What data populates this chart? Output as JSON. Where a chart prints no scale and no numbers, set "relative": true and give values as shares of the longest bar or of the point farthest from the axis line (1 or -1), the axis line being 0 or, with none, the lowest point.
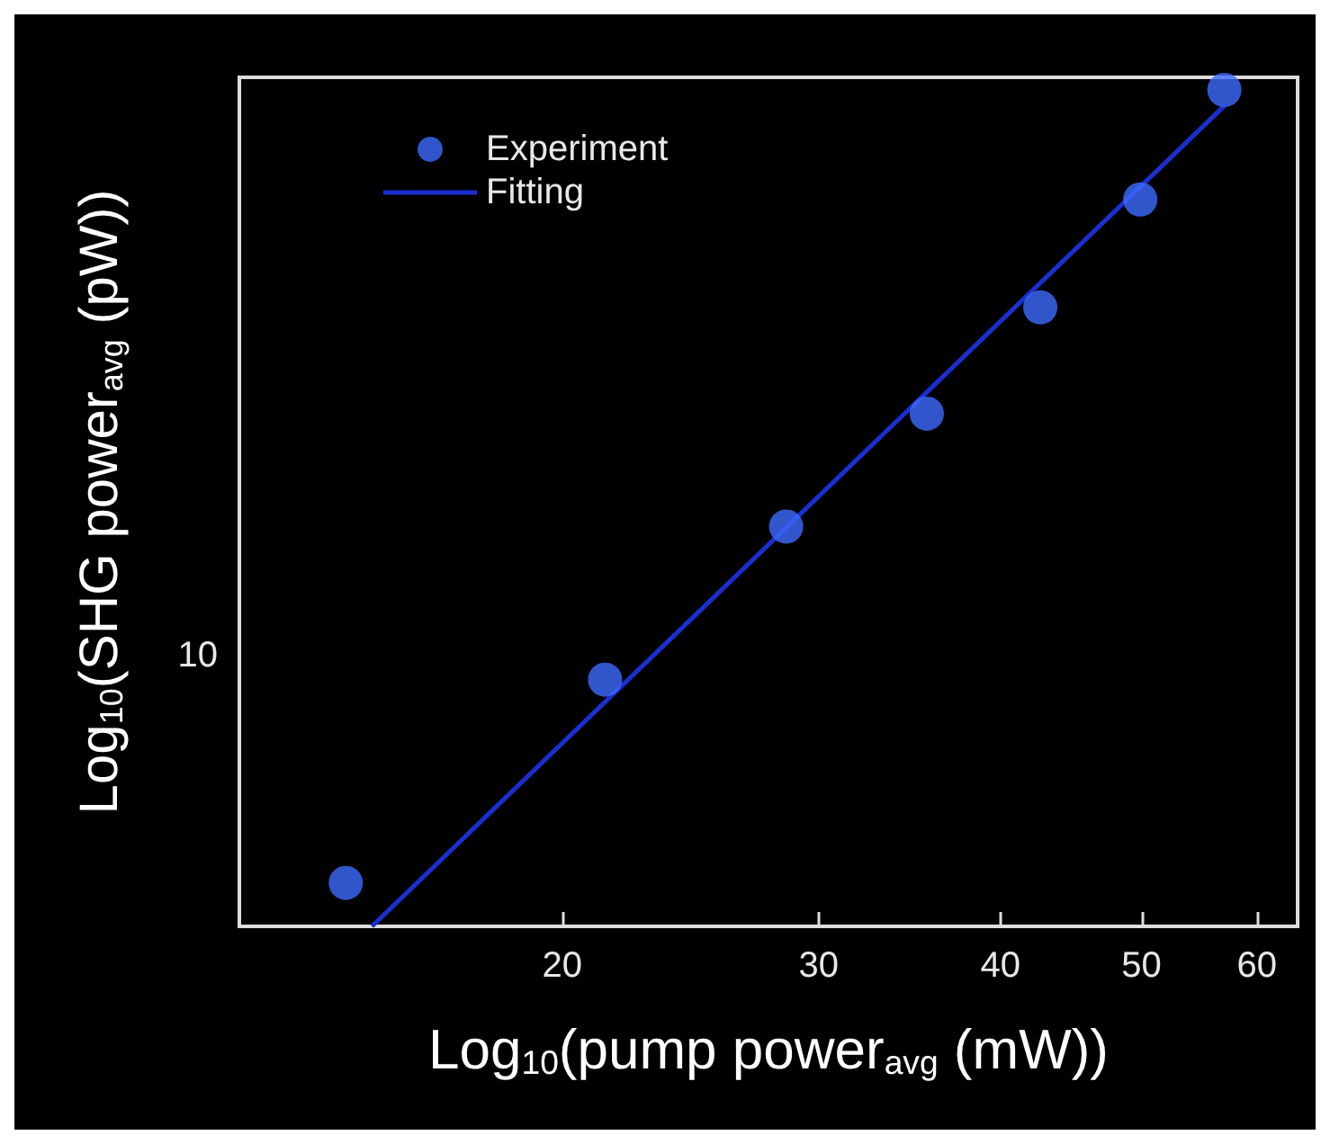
{
  "chart_data": {
    "type": "scatter",
    "xlabel": "Log$_{10}$(pump power$_{avg}$ (mW))",
    "ylabel": "Log$_{10}$(SHG power$_{avg}$ (pW))",
    "log": "x",
    "xlim": [
      12,
      64
    ],
    "relative": true,
    "xticks": [
      20,
      30,
      40,
      50,
      60
    ],
    "annotations": [
      "10"
    ],
    "legend": "top left",
    "grid": false,
    "marker": "circle",
    "series": [
      {
        "name": "Experiment",
        "color": "#3d6bff",
        "x": [
          14.2,
          21.4,
          28.5,
          35.6,
          42.6,
          49.9,
          57.0
        ],
        "values": [
          0.052,
          0.295,
          0.478,
          0.613,
          0.74,
          0.869,
          1.0
        ]
      },
      {
        "name": "Fitting",
        "type": "line",
        "marker": "none",
        "color": "#1a2fd0",
        "x": [
          14.8,
          57.0
        ],
        "values": [
          0,
          0.981
        ]
      }
    ]
  }
}
